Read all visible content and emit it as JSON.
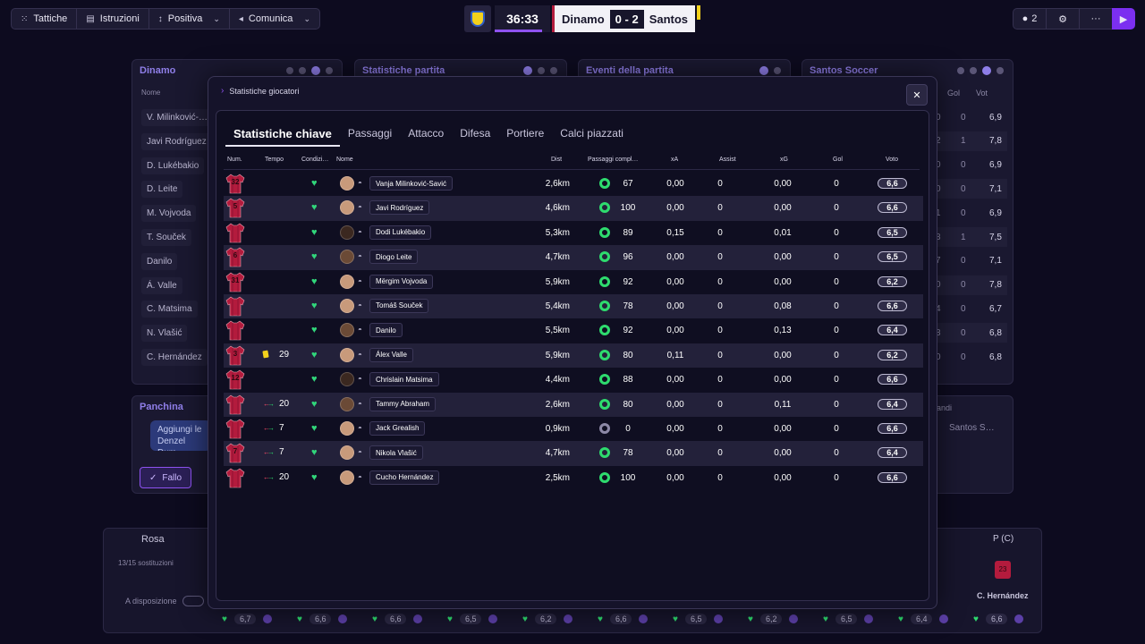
{
  "toolbar": {
    "buttons": [
      {
        "label": "Tattiche",
        "icon": "tactics-icon",
        "chevron": false
      },
      {
        "label": "Istruzioni",
        "icon": "clipboard-icon",
        "chevron": false
      },
      {
        "label": "Positiva",
        "icon": "mentality-icon",
        "chevron": true
      },
      {
        "label": "Comunica",
        "icon": "megaphone-icon",
        "chevron": true
      }
    ]
  },
  "scoreboard": {
    "clock": "36:33",
    "clock_progress": 0.85,
    "home": "Dinamo",
    "score": "0 - 2",
    "away": "Santos"
  },
  "top_right": {
    "users_count": "2"
  },
  "colors": {
    "accent": "#8e52f0",
    "condition": "#2edb6e",
    "shirt": "#b31b3d"
  },
  "background": {
    "panels": [
      {
        "title": "Dinamo"
      },
      {
        "title": "Statistiche partita"
      },
      {
        "title": "Eventi della partita"
      },
      {
        "title": "Santos Soccer"
      }
    ],
    "home_header": "Nome",
    "away_headers": [
      "Gol",
      "Vot"
    ],
    "home_names": [
      "V. Milinković-…",
      "Javi Rodríguez",
      "D. Lukébakio",
      "D. Leite",
      "M. Vojvoda",
      "T. Souček",
      "Danilo",
      "Á. Valle",
      "C. Matsima",
      "N. Vlašić",
      "C. Hernández"
    ],
    "away_rows": [
      {
        "a": "0",
        "b": "0",
        "c": "6,9"
      },
      {
        "a": "2",
        "b": "1",
        "c": "7,8"
      },
      {
        "a": "0",
        "b": "0",
        "c": "6,9"
      },
      {
        "a": "0",
        "b": "0",
        "c": "7,1"
      },
      {
        "a": "1",
        "b": "0",
        "c": "6,9"
      },
      {
        "a": "3",
        "b": "1",
        "c": "7,5"
      },
      {
        "a": "7",
        "b": "0",
        "c": "7,1"
      },
      {
        "a": "0",
        "b": "0",
        "c": "7,8"
      },
      {
        "a": "4",
        "b": "0",
        "c": "6,7"
      },
      {
        "a": "3",
        "b": "0",
        "c": "6,8"
      },
      {
        "a": "0",
        "b": "0",
        "c": "6,8"
      }
    ],
    "bench_title": "Panchina",
    "chat_text": "Aggiungi le Denzel Dum",
    "fallo_label": "Fallo",
    "right_bench_label": "andi",
    "right_bench_team": "Santos S…",
    "rosa_label": "Rosa",
    "subs_text": "13/15 sostituzioni",
    "available_label": "A disposizione",
    "position_label": "P (C)",
    "bottom_player": "C. Hernández",
    "bottom_shirt_num": "23",
    "rating_strip": [
      "6,7",
      "6,6",
      "6,6",
      "6,5",
      "6,2",
      "6,6",
      "6,5",
      "6,2",
      "6,5",
      "6,4",
      "6,6"
    ]
  },
  "modal": {
    "title": "Statistiche giocatori",
    "tabs": [
      "Statistiche chiave",
      "Passaggi",
      "Attacco",
      "Difesa",
      "Portiere",
      "Calci piazzati"
    ],
    "active_tab": 0,
    "columns": {
      "num": "Num.",
      "time": "Tempo",
      "cond": "Condizi…",
      "name": "Nome",
      "dist": "Dist",
      "passes": "Passaggi compl…",
      "xa": "xA",
      "assist": "Assist",
      "xg": "xG",
      "gol": "Gol",
      "voto": "Voto"
    },
    "players": [
      {
        "num": "32",
        "event": "",
        "minute": "",
        "name": "Vanja Milinković-Savić",
        "dist": "2,6km",
        "pass": "67",
        "xa": "0,00",
        "assist": "0",
        "xg": "0,00",
        "gol": "0",
        "voto": "6,6",
        "face": "light"
      },
      {
        "num": "5",
        "event": "",
        "minute": "",
        "name": "Javi Rodríguez",
        "dist": "4,6km",
        "pass": "100",
        "xa": "0,00",
        "assist": "0",
        "xg": "0,00",
        "gol": "0",
        "voto": "6,6",
        "face": "light"
      },
      {
        "num": "",
        "event": "",
        "minute": "",
        "name": "Dodi Lukébakio",
        "dist": "5,3km",
        "pass": "89",
        "xa": "0,15",
        "assist": "0",
        "xg": "0,01",
        "gol": "0",
        "voto": "6,5",
        "face": "vdark"
      },
      {
        "num": "6",
        "event": "",
        "minute": "",
        "name": "Diogo Leite",
        "dist": "4,7km",
        "pass": "96",
        "xa": "0,00",
        "assist": "0",
        "xg": "0,00",
        "gol": "0",
        "voto": "6,5",
        "face": "dark"
      },
      {
        "num": "31",
        "event": "",
        "minute": "",
        "name": "Mërgim Vojvoda",
        "dist": "5,9km",
        "pass": "92",
        "xa": "0,00",
        "assist": "0",
        "xg": "0,00",
        "gol": "0",
        "voto": "6,2",
        "face": "light"
      },
      {
        "num": "",
        "event": "",
        "minute": "",
        "name": "Tomáš Souček",
        "dist": "5,4km",
        "pass": "78",
        "xa": "0,00",
        "assist": "0",
        "xg": "0,08",
        "gol": "0",
        "voto": "6,6",
        "face": "light"
      },
      {
        "num": "",
        "event": "",
        "minute": "",
        "name": "Danilo",
        "dist": "5,5km",
        "pass": "92",
        "xa": "0,00",
        "assist": "0",
        "xg": "0,13",
        "gol": "0",
        "voto": "6,4",
        "face": "dark"
      },
      {
        "num": "3",
        "event": "yellow",
        "minute": "29",
        "name": "Álex Valle",
        "dist": "5,9km",
        "pass": "80",
        "xa": "0,11",
        "assist": "0",
        "xg": "0,00",
        "gol": "0",
        "voto": "6,2",
        "face": "light"
      },
      {
        "num": "12",
        "event": "",
        "minute": "",
        "name": "Chrislain Matsima",
        "dist": "4,4km",
        "pass": "88",
        "xa": "0,00",
        "assist": "0",
        "xg": "0,00",
        "gol": "0",
        "voto": "6,6",
        "face": "vdark"
      },
      {
        "num": "",
        "event": "sub",
        "minute": "20",
        "name": "Tammy Abraham",
        "dist": "2,6km",
        "pass": "80",
        "xa": "0,00",
        "assist": "0",
        "xg": "0,11",
        "gol": "0",
        "voto": "6,4",
        "face": "dark"
      },
      {
        "num": "",
        "event": "sub",
        "minute": "7",
        "name": "Jack Grealish",
        "dist": "0,9km",
        "pass": "0",
        "xa": "0,00",
        "assist": "0",
        "xg": "0,00",
        "gol": "0",
        "voto": "6,6",
        "face": "light",
        "grey": true
      },
      {
        "num": "7",
        "event": "sub",
        "minute": "7",
        "name": "Nikola Vlašić",
        "dist": "4,7km",
        "pass": "78",
        "xa": "0,00",
        "assist": "0",
        "xg": "0,00",
        "gol": "0",
        "voto": "6,4",
        "face": "light"
      },
      {
        "num": "",
        "event": "sub",
        "minute": "20",
        "name": "Cucho Hernández",
        "dist": "2,5km",
        "pass": "100",
        "xa": "0,00",
        "assist": "0",
        "xg": "0,00",
        "gol": "0",
        "voto": "6,6",
        "face": "light"
      }
    ]
  }
}
